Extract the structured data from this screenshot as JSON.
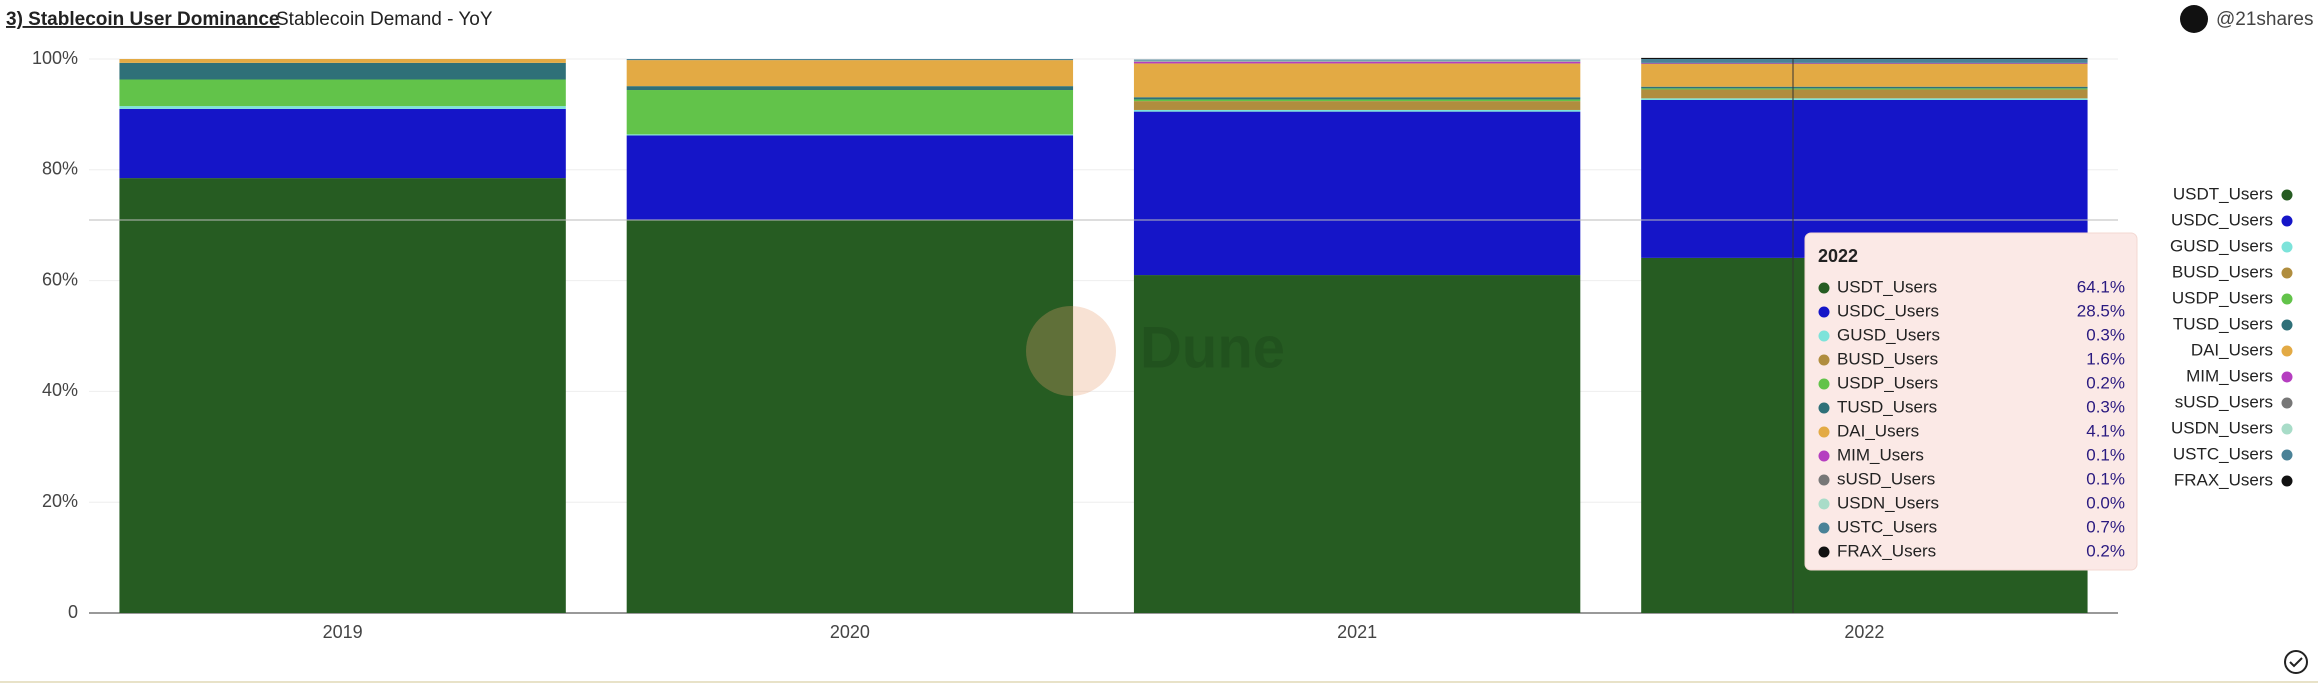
{
  "header": {
    "title": "3) Stablecoin User Dominance",
    "subtitle": "Stablecoin Demand - YoY",
    "account": "@21shares"
  },
  "chart_data": {
    "type": "stacked-bar",
    "watermark": "Dune",
    "categories": [
      "2019",
      "2020",
      "2021",
      "2022"
    ],
    "ylim": [
      0,
      100
    ],
    "yticks": [
      0,
      {
        "value": 20,
        "label": "20%"
      },
      {
        "value": 40,
        "label": "40%"
      },
      {
        "value": 60,
        "label": "60%"
      },
      {
        "value": 80,
        "label": "80%"
      },
      {
        "value": 100,
        "label": "100%"
      }
    ],
    "grid": true,
    "legend": "right",
    "tooltip_category": 3,
    "series": [
      {
        "name": "USDT_Users",
        "color": "#265c22",
        "values": [
          78.5,
          71,
          61,
          64.1
        ],
        "value_labels": [
          null,
          null,
          null,
          "64.1%"
        ]
      },
      {
        "name": "USDC_Users",
        "color": "#1515c8",
        "values": [
          12.5,
          15.2,
          29.5,
          28.5
        ],
        "value_labels": [
          null,
          null,
          null,
          "28.5%"
        ]
      },
      {
        "name": "GUSD_Users",
        "color": "#7de3da",
        "values": [
          0.5,
          0.2,
          0.3,
          0.3
        ],
        "value_labels": [
          null,
          null,
          null,
          "0.3%"
        ]
      },
      {
        "name": "BUSD_Users",
        "color": "#b08d3e",
        "values": [
          0,
          0,
          1.6,
          1.6
        ],
        "value_labels": [
          null,
          null,
          null,
          "1.6%"
        ]
      },
      {
        "name": "USDP_Users",
        "color": "#62c34a",
        "values": [
          4.8,
          8,
          0.3,
          0.2
        ],
        "value_labels": [
          null,
          null,
          null,
          "0.2%"
        ]
      },
      {
        "name": "TUSD_Users",
        "color": "#2f7078",
        "values": [
          3,
          0.7,
          0.4,
          0.3
        ],
        "value_labels": [
          null,
          null,
          null,
          "0.3%"
        ]
      },
      {
        "name": "DAI_Users",
        "color": "#e3aa44",
        "values": [
          0.7,
          4.7,
          6.1,
          4.1
        ],
        "value_labels": [
          null,
          null,
          null,
          "4.1%"
        ]
      },
      {
        "name": "MIM_Users",
        "color": "#b53ec0",
        "values": [
          0,
          0,
          0.3,
          0.1
        ],
        "value_labels": [
          null,
          null,
          null,
          "0.1%"
        ]
      },
      {
        "name": "sUSD_Users",
        "color": "#777777",
        "values": [
          0,
          0,
          0.1,
          0.1
        ],
        "value_labels": [
          null,
          null,
          null,
          "0.1%"
        ]
      },
      {
        "name": "USDN_Users",
        "color": "#a8dcc8",
        "values": [
          0,
          0,
          0.1,
          0.0
        ],
        "value_labels": [
          null,
          null,
          null,
          "0.0%"
        ]
      },
      {
        "name": "USTC_Users",
        "color": "#4a8297",
        "values": [
          0,
          0.2,
          0.2,
          0.7
        ],
        "value_labels": [
          null,
          null,
          null,
          "0.7%"
        ]
      },
      {
        "name": "FRAX_Users",
        "color": "#111111",
        "values": [
          0,
          0,
          0,
          0.2
        ],
        "value_labels": [
          null,
          null,
          null,
          "0.2%"
        ]
      }
    ]
  }
}
